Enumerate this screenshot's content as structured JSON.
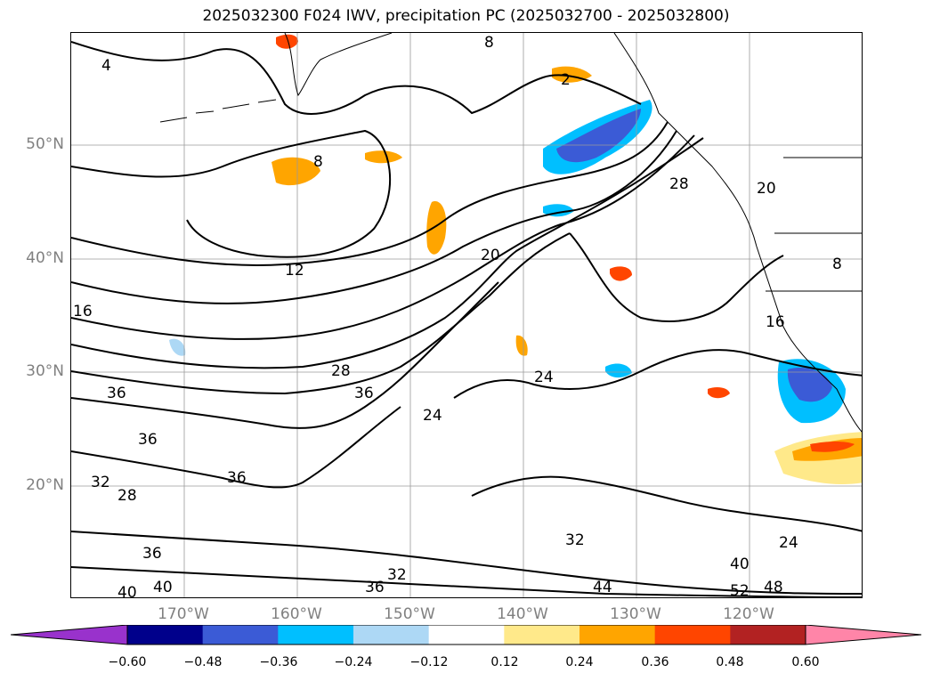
{
  "title": "2025032300 F024 IWV, precipitation PC (2025032700 - 2025032800)",
  "lat_labels": [
    "50°N",
    "40°N",
    "30°N",
    "20°N"
  ],
  "lon_labels": [
    "170°W",
    "160°W",
    "150°W",
    "140°W",
    "130°W",
    "120°W"
  ],
  "colorbar": {
    "ticks": [
      "−0.60",
      "−0.48",
      "−0.36",
      "−0.24",
      "−0.12",
      "0.12",
      "0.24",
      "0.36",
      "0.48",
      "0.60"
    ],
    "colors": [
      "#9932cc",
      "#00008b",
      "#3b5bd6",
      "#00bfff",
      "#add8f5",
      "#ffffff",
      "#ffe98a",
      "#ffa500",
      "#ff4500",
      "#b22222",
      "#ff85a8"
    ]
  },
  "contour_labels": [
    {
      "text": "4"
    },
    {
      "text": "8"
    },
    {
      "text": "8"
    },
    {
      "text": "12"
    },
    {
      "text": "16"
    },
    {
      "text": "20"
    },
    {
      "text": "24"
    },
    {
      "text": "24"
    },
    {
      "text": "24"
    },
    {
      "text": "28"
    },
    {
      "text": "28"
    },
    {
      "text": "28"
    },
    {
      "text": "32"
    },
    {
      "text": "32"
    },
    {
      "text": "32"
    },
    {
      "text": "36"
    },
    {
      "text": "36"
    },
    {
      "text": "36"
    },
    {
      "text": "36"
    },
    {
      "text": "36"
    },
    {
      "text": "36"
    },
    {
      "text": "40"
    },
    {
      "text": "40"
    },
    {
      "text": "40"
    },
    {
      "text": "44"
    },
    {
      "text": "48"
    },
    {
      "text": "52"
    },
    {
      "text": "2"
    },
    {
      "text": "8"
    },
    {
      "text": "20"
    },
    {
      "text": "16"
    }
  ]
}
